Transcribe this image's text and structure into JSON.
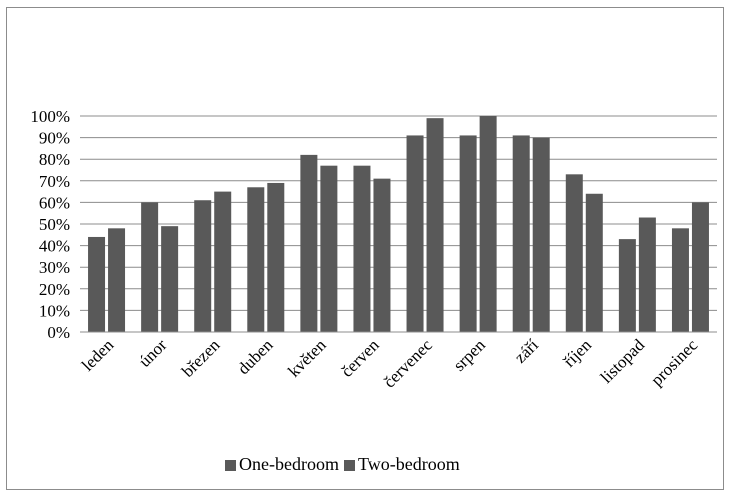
{
  "chart_data": {
    "type": "bar",
    "title": "",
    "xlabel": "",
    "ylabel": "",
    "categories": [
      "leden",
      "únor",
      "březen",
      "duben",
      "květen",
      "červen",
      "červenec",
      "srpen",
      "září",
      "říjen",
      "listopad",
      "prosinec"
    ],
    "series": [
      {
        "name": "One-bedroom",
        "values": [
          44,
          60,
          61,
          67,
          82,
          77,
          91,
          91,
          91,
          73,
          43,
          48
        ],
        "color": "#595959"
      },
      {
        "name": "Two-bedroom",
        "values": [
          48,
          49,
          65,
          69,
          77,
          71,
          99,
          100,
          90,
          64,
          53,
          60
        ],
        "color": "#595959"
      }
    ],
    "ylim": [
      0,
      100
    ],
    "yticks": [
      "0%",
      "10%",
      "20%",
      "30%",
      "40%",
      "50%",
      "60%",
      "70%",
      "80%",
      "90%",
      "100%"
    ],
    "grid": true,
    "legend": "bottom"
  }
}
